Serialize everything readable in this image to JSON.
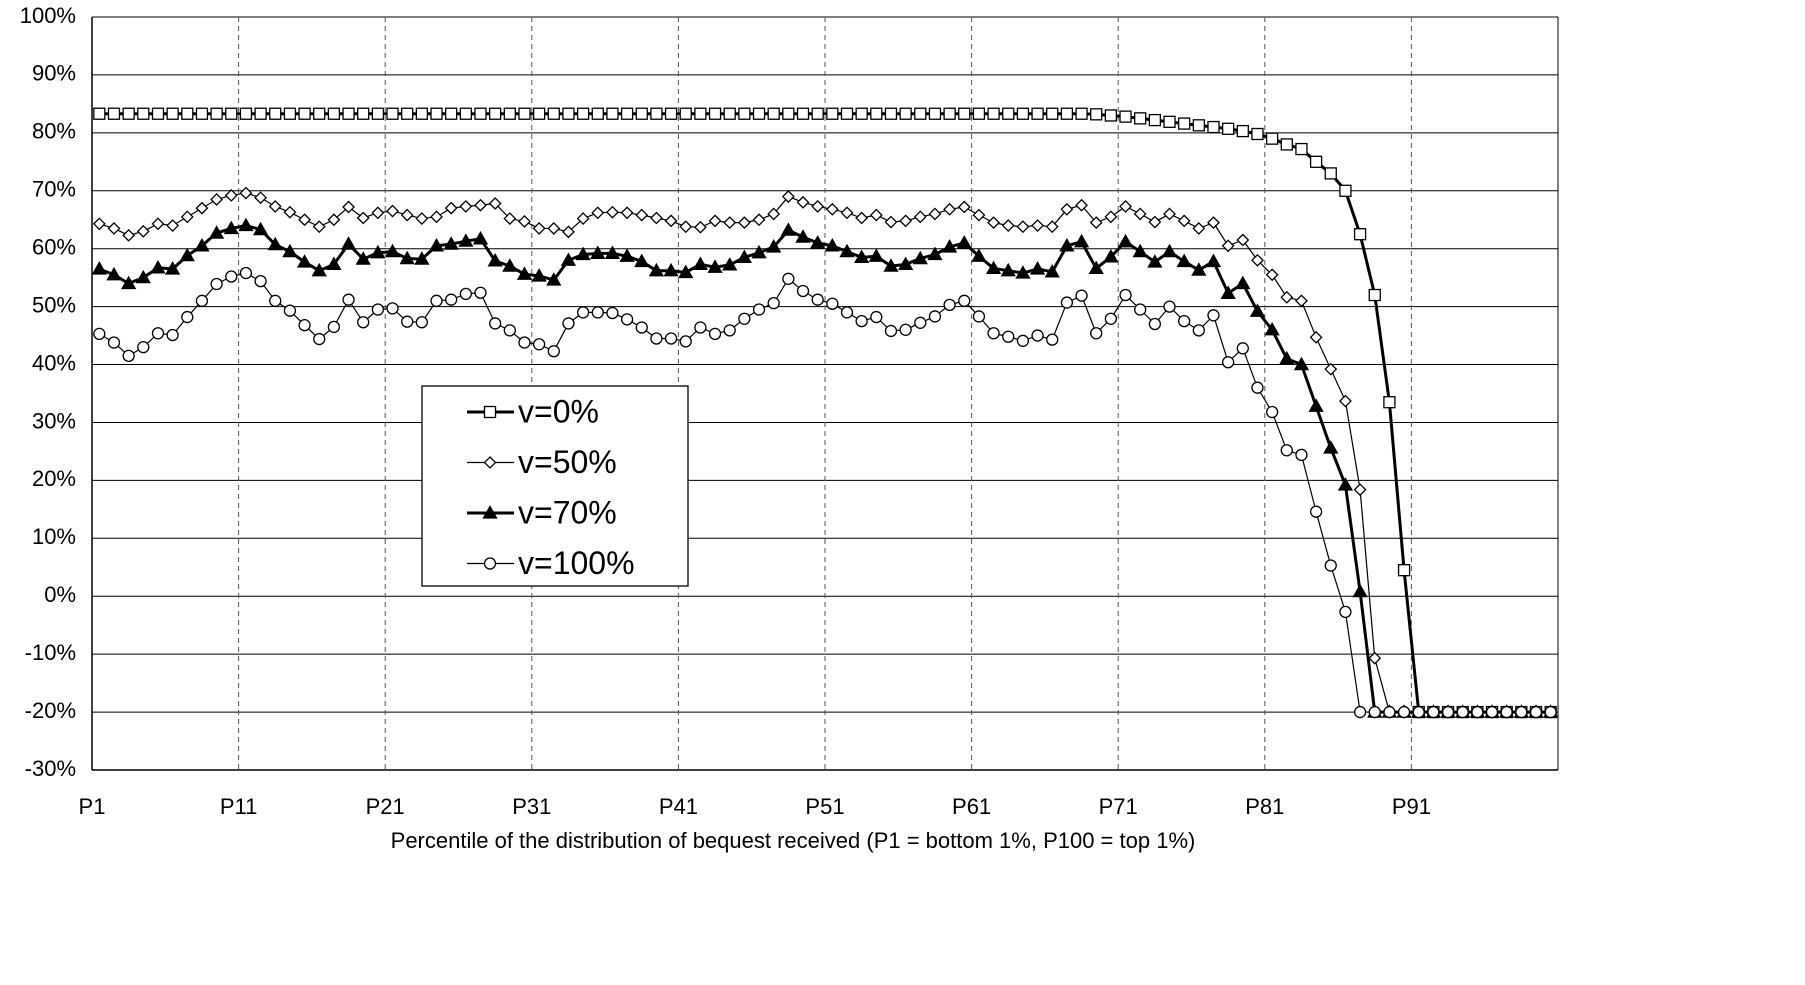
{
  "chart_data": {
    "type": "line",
    "x_label": "Percentile of the distribution of bequest received (P1 = bottom 1%, P100 = top 1%)",
    "categories": [
      "P1",
      null,
      null,
      null,
      null,
      null,
      null,
      null,
      null,
      null,
      "P11",
      null,
      null,
      null,
      null,
      null,
      null,
      null,
      null,
      null,
      "P21",
      null,
      null,
      null,
      null,
      null,
      null,
      null,
      null,
      null,
      "P31",
      null,
      null,
      null,
      null,
      null,
      null,
      null,
      null,
      null,
      "P41",
      null,
      null,
      null,
      null,
      null,
      null,
      null,
      null,
      null,
      "P51",
      null,
      null,
      null,
      null,
      null,
      null,
      null,
      null,
      null,
      "P61",
      null,
      null,
      null,
      null,
      null,
      null,
      null,
      null,
      null,
      "P71",
      null,
      null,
      null,
      null,
      null,
      null,
      null,
      null,
      null,
      "P81",
      null,
      null,
      null,
      null,
      null,
      null,
      null,
      null,
      null,
      "P91",
      null,
      null,
      null,
      null,
      null,
      null,
      null,
      null,
      null
    ],
    "ylim": [
      -30,
      100
    ],
    "yticks": [
      {
        "value": -30,
        "label": "-30%"
      },
      {
        "value": -20,
        "label": "-20%"
      },
      {
        "value": -10,
        "label": "-10%"
      },
      {
        "value": 0,
        "label": "0%"
      },
      {
        "value": 10,
        "label": "10%"
      },
      {
        "value": 20,
        "label": "20%"
      },
      {
        "value": 30,
        "label": "30%"
      },
      {
        "value": 40,
        "label": "40%"
      },
      {
        "value": 50,
        "label": "50%"
      },
      {
        "value": 60,
        "label": "60%"
      },
      {
        "value": 70,
        "label": "70%"
      },
      {
        "value": 80,
        "label": "80%"
      },
      {
        "value": 90,
        "label": "90%"
      },
      {
        "value": 100,
        "label": "100%"
      }
    ],
    "grid": true,
    "series": [
      {
        "name": "v=0%",
        "color": "#000000",
        "marker": "square",
        "line_width": 3,
        "values": [
          83.3,
          83.3,
          83.3,
          83.3,
          83.3,
          83.3,
          83.3,
          83.3,
          83.3,
          83.3,
          83.3,
          83.3,
          83.3,
          83.3,
          83.3,
          83.3,
          83.3,
          83.3,
          83.3,
          83.3,
          83.3,
          83.3,
          83.3,
          83.3,
          83.3,
          83.3,
          83.3,
          83.3,
          83.3,
          83.3,
          83.3,
          83.3,
          83.3,
          83.3,
          83.3,
          83.3,
          83.3,
          83.3,
          83.3,
          83.3,
          83.3,
          83.3,
          83.3,
          83.3,
          83.3,
          83.3,
          83.3,
          83.3,
          83.3,
          83.3,
          83.3,
          83.3,
          83.3,
          83.3,
          83.3,
          83.3,
          83.3,
          83.3,
          83.3,
          83.3,
          83.3,
          83.3,
          83.3,
          83.3,
          83.3,
          83.3,
          83.3,
          83.3,
          83.2,
          83.0,
          82.8,
          82.5,
          82.2,
          81.9,
          81.6,
          81.3,
          81.0,
          80.7,
          80.3,
          79.8,
          79.0,
          78.0,
          77.2,
          75.0,
          73.0,
          70.0,
          62.5,
          52.0,
          33.5,
          4.5,
          -20,
          -20,
          -20,
          -20,
          -20,
          -20,
          -20,
          -20,
          -20,
          -20
        ]
      },
      {
        "name": "v=50%",
        "color": "#000000",
        "marker": "diamond",
        "line_width": 1.2,
        "values": [
          64.3,
          63.5,
          62.3,
          63.0,
          64.3,
          64.0,
          65.5,
          67.0,
          68.5,
          69.2,
          69.6,
          68.8,
          67.3,
          66.3,
          65.0,
          63.8,
          65.0,
          67.2,
          65.3,
          66.2,
          66.5,
          65.8,
          65.2,
          65.5,
          67.0,
          67.3,
          67.5,
          67.8,
          65.2,
          64.7,
          63.5,
          63.5,
          62.9,
          65.2,
          66.2,
          66.3,
          66.2,
          65.8,
          65.3,
          64.8,
          63.8,
          63.7,
          64.8,
          64.5,
          64.5,
          65.0,
          66.0,
          69.0,
          68.0,
          67.3,
          66.8,
          66.2,
          65.3,
          65.8,
          64.6,
          64.8,
          65.5,
          66.0,
          66.8,
          67.2,
          65.8,
          64.5,
          64.0,
          63.8,
          64.0,
          63.8,
          66.8,
          67.5,
          64.5,
          65.5,
          67.3,
          66.0,
          64.6,
          66.0,
          64.8,
          63.5,
          64.5,
          60.5,
          61.5,
          58.0,
          55.5,
          51.6,
          51.0,
          44.7,
          39.2,
          33.7,
          18.4,
          -10.7,
          -20,
          -20,
          -20,
          -20,
          -20,
          -20,
          -20,
          -20,
          -20,
          -20,
          -20,
          -20
        ]
      },
      {
        "name": "v=70%",
        "color": "#000000",
        "marker": "triangle",
        "line_width": 3,
        "values": [
          56.5,
          55.5,
          54.0,
          55.0,
          56.7,
          56.5,
          58.8,
          60.5,
          62.7,
          63.5,
          64.0,
          63.3,
          60.7,
          59.5,
          57.7,
          56.2,
          57.3,
          60.8,
          58.2,
          59.3,
          59.5,
          58.3,
          58.2,
          60.5,
          60.8,
          61.3,
          61.7,
          57.9,
          57.0,
          55.6,
          55.3,
          54.6,
          58.0,
          59.0,
          59.2,
          59.2,
          58.7,
          57.8,
          56.2,
          56.2,
          55.9,
          57.3,
          56.8,
          57.2,
          58.5,
          59.3,
          60.3,
          63.2,
          62.0,
          61.0,
          60.5,
          59.5,
          58.5,
          58.7,
          57.0,
          57.3,
          58.3,
          59.0,
          60.3,
          61.0,
          58.7,
          56.6,
          56.2,
          55.8,
          56.5,
          56.0,
          60.5,
          61.2,
          56.6,
          58.6,
          61.2,
          59.5,
          57.7,
          59.5,
          57.8,
          56.3,
          57.8,
          52.3,
          54.0,
          49.2,
          46.0,
          41.0,
          40.0,
          32.8,
          25.6,
          19.2,
          0.8,
          -20,
          -20,
          -20,
          -20,
          -20,
          -20,
          -20,
          -20,
          -20,
          -20,
          -20,
          -20,
          -20
        ]
      },
      {
        "name": "v=100%",
        "color": "#000000",
        "marker": "circle",
        "line_width": 1.2,
        "values": [
          45.3,
          43.8,
          41.5,
          43.0,
          45.4,
          45.1,
          48.2,
          51.0,
          53.9,
          55.2,
          55.8,
          54.4,
          51.0,
          49.3,
          46.8,
          44.4,
          46.5,
          51.2,
          47.3,
          49.5,
          49.7,
          47.4,
          47.3,
          51.0,
          51.2,
          52.2,
          52.4,
          47.1,
          45.9,
          43.8,
          43.5,
          42.3,
          47.1,
          49.0,
          49.0,
          48.9,
          47.8,
          46.4,
          44.5,
          44.5,
          44.0,
          46.4,
          45.3,
          45.9,
          47.9,
          49.5,
          50.6,
          54.8,
          52.7,
          51.2,
          50.5,
          49.0,
          47.5,
          48.2,
          45.8,
          46.0,
          47.2,
          48.3,
          50.3,
          51.0,
          48.3,
          45.4,
          44.8,
          44.1,
          45.0,
          44.3,
          50.7,
          51.9,
          45.4,
          47.9,
          52.0,
          49.5,
          47.0,
          50.0,
          47.5,
          45.9,
          48.5,
          40.4,
          42.8,
          36.0,
          31.8,
          25.2,
          24.4,
          14.6,
          5.3,
          -2.7,
          -20,
          -20,
          -20,
          -20,
          -20,
          -20,
          -20,
          -20,
          -20,
          -20,
          -20,
          -20,
          -20,
          -20
        ]
      }
    ]
  }
}
